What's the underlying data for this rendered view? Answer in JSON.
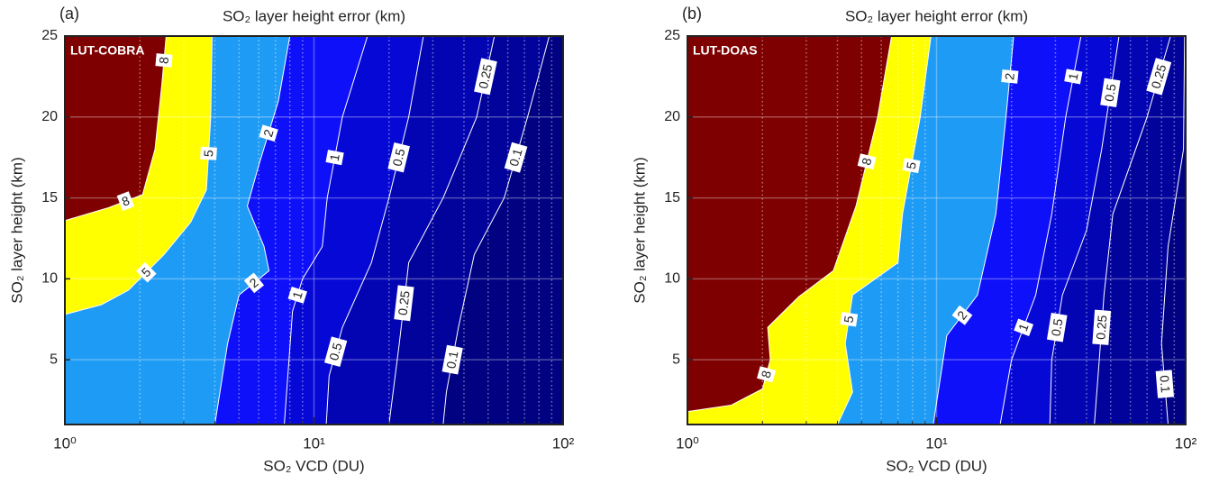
{
  "chart_data": [
    {
      "type": "contour",
      "panel_label": "(a)",
      "title": "SO₂ layer height error (km)",
      "inner_label": "LUT-COBRA",
      "xlabel": "SO₂ VCD (DU)",
      "ylabel": "SO₂ layer height (km)",
      "xscale": "log",
      "xlim": [
        1,
        100
      ],
      "ylim": [
        1,
        25
      ],
      "xticks": [
        {
          "value": 1,
          "label": "10⁰"
        },
        {
          "value": 10,
          "label": "10¹"
        },
        {
          "value": 100,
          "label": "10²"
        }
      ],
      "xminorticks": [
        2,
        3,
        4,
        5,
        6,
        7,
        8,
        9,
        20,
        30,
        40,
        50,
        60,
        70,
        80,
        90
      ],
      "yticks": [
        5,
        10,
        15,
        20,
        25
      ],
      "grid": true,
      "base_color": "#7f0000",
      "series": [
        {
          "level": 8,
          "color": "#ffff00",
          "x": [
            2.55,
            2.45,
            2.3,
            2.05,
            1.5,
            1.0
          ],
          "y": [
            25,
            22,
            18,
            15.2,
            14.4,
            13.6
          ]
        },
        {
          "level": 5,
          "color": "#1e9bf5",
          "x": [
            3.9,
            3.85,
            3.7,
            3.2,
            2.5,
            1.8,
            1.4,
            1.0
          ],
          "y": [
            25,
            20,
            15.5,
            13.5,
            11.5,
            9.3,
            8.4,
            7.8
          ]
        },
        {
          "level": 2,
          "color": "#0f10fa",
          "x": [
            8.0,
            7.2,
            6.0,
            5.4,
            6.3,
            6.6,
            5.0,
            4.5,
            4.0
          ],
          "y": [
            25,
            21,
            17,
            14.5,
            12,
            10.5,
            9,
            6,
            1
          ]
        },
        {
          "level": 1,
          "color": "#0608d6",
          "x": [
            16.4,
            13,
            11.3,
            10.8,
            9,
            8.2,
            7.6
          ],
          "y": [
            25,
            20,
            15,
            12,
            10,
            8,
            1
          ]
        },
        {
          "level": 0.5,
          "color": "#0305b2",
          "x": [
            27.5,
            24,
            20,
            17,
            13,
            11.5,
            11.2
          ],
          "y": [
            25,
            20,
            15,
            11,
            7,
            4,
            1
          ]
        },
        {
          "level": 0.25,
          "color": "#02039a",
          "x": [
            53,
            45,
            33,
            24,
            22,
            20
          ],
          "y": [
            25,
            20,
            15,
            11,
            6,
            1
          ]
        },
        {
          "level": 0.1,
          "color": "#000282",
          "x": [
            88,
            72,
            58,
            44,
            38,
            34,
            33
          ],
          "y": [
            25,
            20,
            15,
            11.5,
            7,
            3,
            1
          ]
        }
      ]
    },
    {
      "type": "contour",
      "panel_label": "(b)",
      "title": "SO₂ layer height error (km)",
      "inner_label": "LUT-DOAS",
      "xlabel": "SO₂ VCD (DU)",
      "ylabel": "SO₂ layer height (km)",
      "xscale": "log",
      "xlim": [
        1,
        100
      ],
      "ylim": [
        1,
        25
      ],
      "xticks": [
        {
          "value": 1,
          "label": "10⁰"
        },
        {
          "value": 10,
          "label": "10¹"
        },
        {
          "value": 100,
          "label": "10²"
        }
      ],
      "xminorticks": [
        2,
        3,
        4,
        5,
        6,
        7,
        8,
        9,
        20,
        30,
        40,
        50,
        60,
        70,
        80,
        90
      ],
      "yticks": [
        5,
        10,
        15,
        20,
        25
      ],
      "grid": true,
      "base_color": "#7f0000",
      "series": [
        {
          "level": 8,
          "color": "#ffff00",
          "x": [
            6.6,
            5.8,
            4.75,
            3.85,
            2.8,
            2.1,
            2.15,
            2.0,
            1.5,
            1.0
          ],
          "y": [
            25,
            20,
            14.5,
            10.5,
            8.9,
            7,
            5,
            3.2,
            2.2,
            1.8
          ]
        },
        {
          "level": 5,
          "color": "#1e9bf5",
          "x": [
            9.5,
            8.6,
            7.3,
            7.0,
            4.6,
            4.3,
            4.6,
            4.0
          ],
          "y": [
            25,
            20,
            14,
            11,
            9,
            6,
            3,
            1
          ]
        },
        {
          "level": 2,
          "color": "#0f10fa",
          "x": [
            20.4,
            19,
            17.3,
            14.6,
            11,
            9.7
          ],
          "y": [
            25,
            20,
            14,
            9,
            6.5,
            1
          ]
        },
        {
          "level": 1,
          "color": "#0608d6",
          "x": [
            38,
            33,
            29,
            25,
            20,
            18
          ],
          "y": [
            25,
            20,
            14,
            9,
            5,
            1
          ]
        },
        {
          "level": 0.5,
          "color": "#0305b2",
          "x": [
            54,
            46,
            40,
            32,
            29,
            28.5
          ],
          "y": [
            25,
            18,
            13,
            9,
            5,
            1
          ]
        },
        {
          "level": 0.25,
          "color": "#02039a",
          "x": [
            87,
            70,
            51,
            47,
            45,
            43
          ],
          "y": [
            25,
            20,
            14,
            9,
            5,
            1
          ]
        },
        {
          "level": 0.1,
          "color": "#000282",
          "x": [
            99,
            98,
            85,
            80,
            85
          ],
          "y": [
            25,
            18,
            12,
            6,
            1
          ]
        }
      ]
    }
  ]
}
